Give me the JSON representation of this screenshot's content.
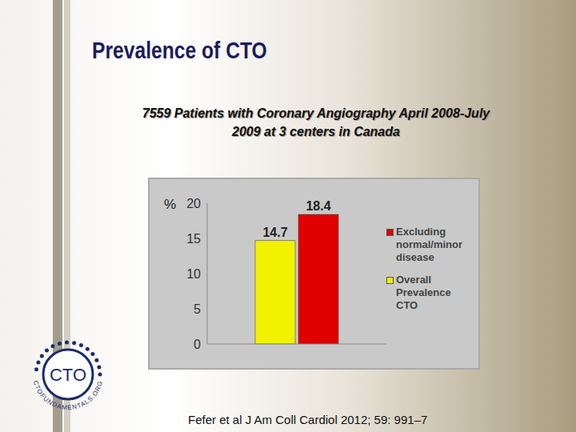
{
  "title": "Prevalence of CTO",
  "subtitle": [
    "7559 Patients with Coronary Angiography April 2008-July",
    "2009 at 3 centers in Canada"
  ],
  "citation": "Fefer et al J Am Coll Cardiol 2012; 59: 991–7",
  "logo": {
    "text": "CTO",
    "ring_text": "CTOFUNDAMENTALS.ORG"
  },
  "chart_data": {
    "type": "bar",
    "y_label": "%",
    "categories": [
      null
    ],
    "series": [
      {
        "name": "Overall Prevalence CTO",
        "color": "#f2f200",
        "values": [
          14.7
        ]
      },
      {
        "name": "Excluding normal/minor disease",
        "color": "#e00000",
        "values": [
          18.4
        ]
      }
    ],
    "ylim": [
      0,
      20
    ],
    "yticks": [
      0,
      5,
      10,
      15,
      20
    ],
    "grid": false,
    "legend": "right",
    "data_labels": true,
    "tick_labels": "y"
  }
}
